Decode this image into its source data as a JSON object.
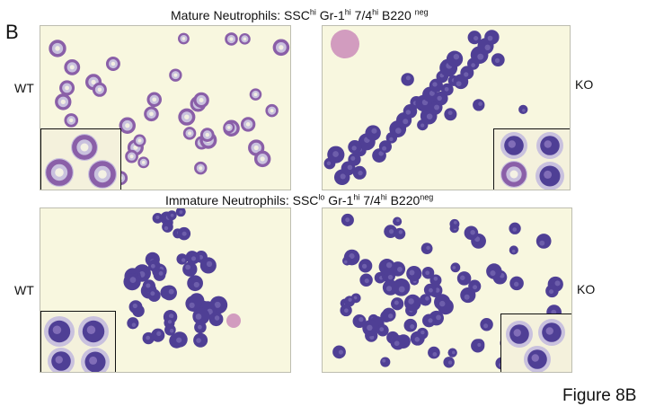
{
  "panel_letter": "B",
  "rows": [
    {
      "title_parts": [
        {
          "t": "Mature Neutrophils: SSC",
          "sup": false
        },
        {
          "t": "hi",
          "sup": true
        },
        {
          "t": " Gr-1",
          "sup": false
        },
        {
          "t": "hi",
          "sup": true
        },
        {
          "t": " 7/4",
          "sup": false
        },
        {
          "t": "hi",
          "sup": true
        },
        {
          "t": " B220 ",
          "sup": false
        },
        {
          "t": "neg",
          "sup": true
        }
      ],
      "left_label": "WT",
      "right_label": "KO"
    },
    {
      "title_parts": [
        {
          "t": "Immature Neutrophils: SSC",
          "sup": false
        },
        {
          "t": "lo",
          "sup": true
        },
        {
          "t": " Gr-1",
          "sup": false
        },
        {
          "t": "hi",
          "sup": true
        },
        {
          "t": "  7/4",
          "sup": false
        },
        {
          "t": "hi",
          "sup": true
        },
        {
          "t": " B220",
          "sup": false
        },
        {
          "t": "neg",
          "sup": true
        }
      ],
      "left_label": "WT",
      "right_label": "KO"
    }
  ],
  "figure_caption": "Figure 8B",
  "colors": {
    "background": "#f8f7df",
    "ring_cell": "#8a5fa8",
    "dark_cell": "#4f3f95",
    "pink_cell": "#c884b6",
    "cytoplasm": "#c9c1de"
  }
}
